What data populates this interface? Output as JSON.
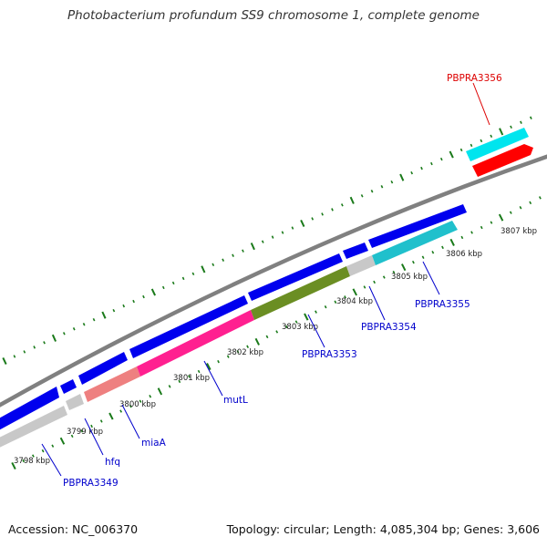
{
  "title": "Photobacterium profundum SS9 chromosome 1, complete genome",
  "footer": {
    "accession": "Accession: NC_006370",
    "summary": "Topology: circular; Length: 4,085,304 bp; Genes: 3,606"
  },
  "colors": {
    "background": "#ffffff",
    "forward_gene": "#0000ee",
    "reverse_cds_gray": "#c8c8c8",
    "backbone": "#808080",
    "ticks": "#1a7a1a",
    "gene_label": "#0000cc",
    "selected_label": "#dd0000",
    "cyan": "#00e5ee",
    "red": "#ff0000",
    "salmon": "#ee8080",
    "magenta": "#ff2090",
    "olive": "#6b8e23",
    "teal": "#20c0cc"
  },
  "kbp_labels": [
    "3798 kbp",
    "3799 kbp",
    "3800 kbp",
    "3801 kbp",
    "3802 kbp",
    "3803 kbp",
    "3804 kbp",
    "3805 kbp",
    "3806 kbp",
    "3807 kbp"
  ],
  "genes": [
    {
      "name": "PBPRA3349",
      "color": "#0000cc"
    },
    {
      "name": "hfq",
      "color": "#0000cc"
    },
    {
      "name": "miaA",
      "color": "#0000cc"
    },
    {
      "name": "mutL",
      "color": "#0000cc"
    },
    {
      "name": "PBPRA3353",
      "color": "#0000cc"
    },
    {
      "name": "PBPRA3354",
      "color": "#0000cc"
    },
    {
      "name": "PBPRA3355",
      "color": "#0000cc"
    },
    {
      "name": "PBPRA3356",
      "color": "#dd0000"
    }
  ]
}
